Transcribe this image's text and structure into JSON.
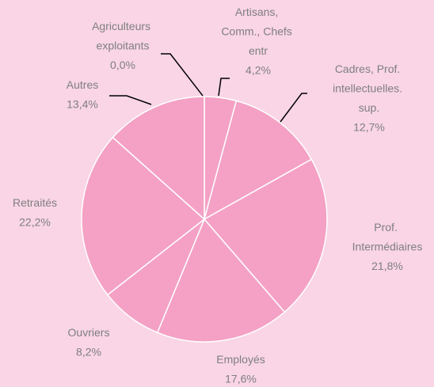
{
  "chart_data": {
    "type": "pie",
    "categories": [
      "Agriculteurs exploitants",
      "Artisans, Comm., Chefs entr",
      "Cadres, Prof. intellectuelles. sup.",
      "Prof. Intermédiaires",
      "Employés",
      "Ouvriers",
      "Retraités",
      "Autres"
    ],
    "values": [
      0,
      4.2,
      12.7,
      21.8,
      17.6,
      8.2,
      22.2,
      13.4
    ],
    "value_labels": [
      "0,0%",
      "4,2%",
      "12,7%",
      "21,8%",
      "17,6%",
      "8,2%",
      "22,2%",
      "13,4%"
    ],
    "color": "#f4a1c5"
  }
}
